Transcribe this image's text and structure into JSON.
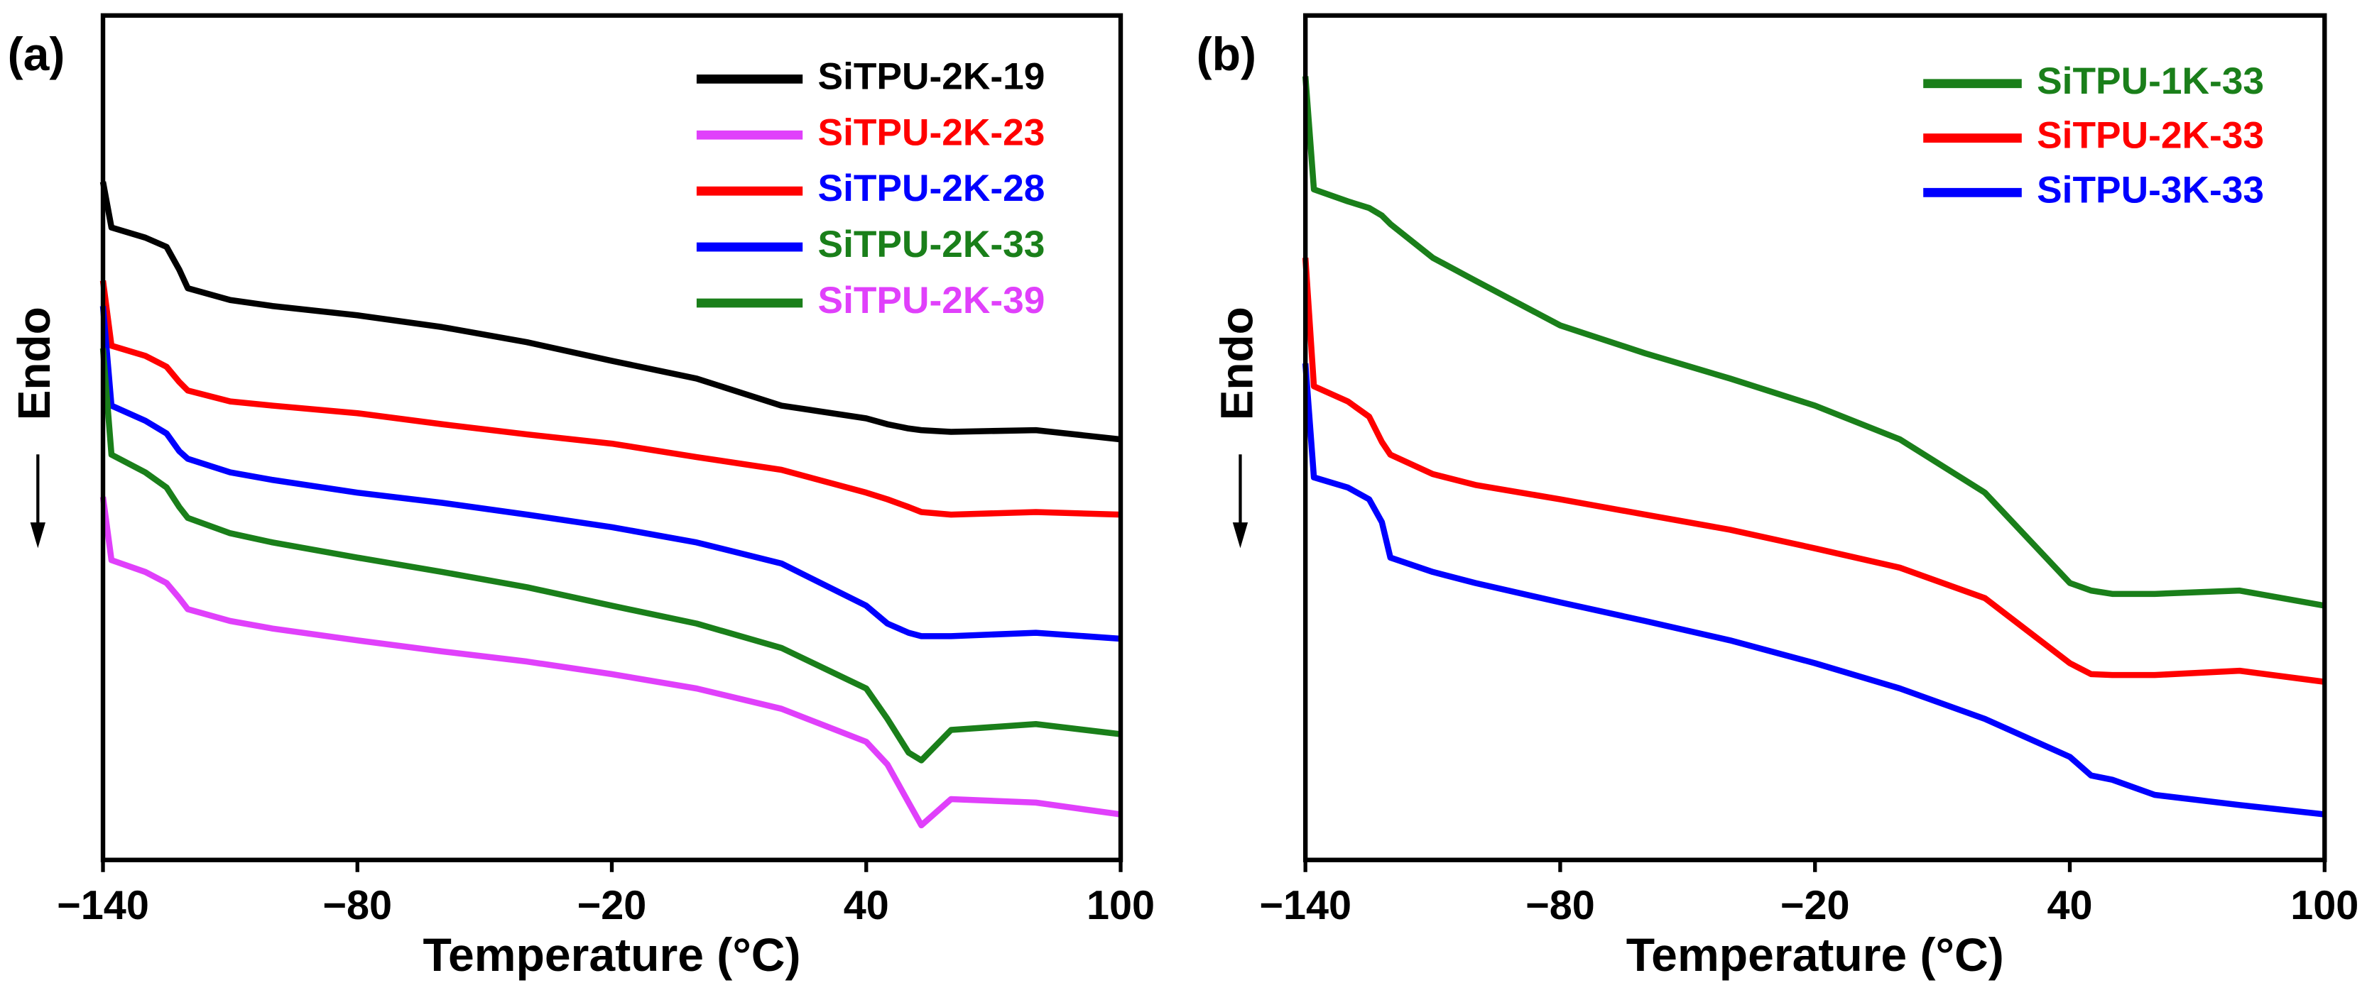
{
  "chart_data": [
    {
      "type": "line",
      "panel_label": "(a)",
      "x_label": "Temperature (°C)",
      "y_label": "Endo",
      "xlim": [
        -140,
        100
      ],
      "ylim": [
        0,
        100
      ],
      "xticks": [
        {
          "value": -140,
          "label": "−140"
        },
        {
          "value": -80,
          "label": "−80"
        },
        {
          "value": -20,
          "label": "−20"
        },
        40,
        100
      ],
      "x": [
        -140,
        -138,
        -130,
        -125,
        -122,
        -120,
        -110,
        -100,
        -80,
        -60,
        -40,
        -20,
        0,
        20,
        40,
        45,
        50,
        53,
        60,
        80,
        100
      ],
      "legend_line_colors": [
        "#000000",
        "#e040fb",
        "#ff0000",
        "#0000ff",
        "#1a7f1a"
      ],
      "series": [
        {
          "name": "SiTPU-2K-19",
          "color": "#000000",
          "values": [
            80.3,
            74.9,
            73.7,
            72.6,
            69.9,
            67.7,
            66.3,
            65.6,
            64.5,
            63.1,
            61.3,
            59.1,
            57.0,
            53.8,
            52.3,
            51.6,
            51.1,
            50.9,
            50.7,
            50.9,
            49.8
          ]
        },
        {
          "name": "SiTPU-2K-23",
          "color": "#ff0000",
          "values": [
            68.6,
            60.9,
            59.7,
            58.4,
            56.6,
            55.6,
            54.3,
            53.8,
            52.9,
            51.6,
            50.4,
            49.3,
            47.7,
            46.2,
            43.5,
            42.7,
            41.8,
            41.2,
            40.9,
            41.2,
            40.9
          ]
        },
        {
          "name": "SiTPU-2K-28",
          "color": "#0000ff",
          "values": [
            65.6,
            53.8,
            52.0,
            50.5,
            48.4,
            47.5,
            45.9,
            45.0,
            43.5,
            42.3,
            40.9,
            39.4,
            37.6,
            35.1,
            30.1,
            28.0,
            26.9,
            26.5,
            26.5,
            26.9,
            26.2
          ]
        },
        {
          "name": "SiTPU-2K-33",
          "color": "#1a7f1a",
          "values": [
            60.6,
            48.0,
            45.9,
            44.1,
            41.8,
            40.5,
            38.7,
            37.6,
            35.8,
            34.1,
            32.3,
            30.1,
            28.0,
            25.1,
            20.3,
            16.7,
            12.7,
            11.8,
            15.4,
            16.1,
            14.9
          ]
        },
        {
          "name": "SiTPU-2K-39",
          "color": "#e040fb",
          "values": [
            43.0,
            35.5,
            34.1,
            32.8,
            31.0,
            29.7,
            28.3,
            27.4,
            26.0,
            24.7,
            23.5,
            22.0,
            20.3,
            17.9,
            14.0,
            11.3,
            6.8,
            4.1,
            7.2,
            6.8,
            5.4
          ]
        }
      ]
    },
    {
      "type": "line",
      "panel_label": "(b)",
      "x_label": "Temperature (°C)",
      "y_label": "Endo",
      "xlim": [
        -140,
        100
      ],
      "ylim": [
        0,
        100
      ],
      "xticks": [
        {
          "value": -140,
          "label": "−140"
        },
        {
          "value": -80,
          "label": "−80"
        },
        {
          "value": -20,
          "label": "−20"
        },
        40,
        100
      ],
      "x": [
        -140,
        -138,
        -130,
        -125,
        -122,
        -120,
        -110,
        -100,
        -80,
        -60,
        -40,
        -20,
        0,
        20,
        40,
        45,
        50,
        60,
        80,
        100
      ],
      "series": [
        {
          "name": "SiTPU-1K-33",
          "color": "#1a7f1a",
          "values": [
            92.8,
            79.4,
            78.0,
            77.2,
            76.3,
            75.3,
            71.3,
            68.6,
            63.3,
            60.0,
            57.0,
            53.8,
            49.8,
            43.5,
            32.8,
            31.9,
            31.5,
            31.5,
            31.9,
            30.1
          ]
        },
        {
          "name": "SiTPU-2K-33",
          "color": "#ff0000",
          "values": [
            71.3,
            56.1,
            54.3,
            52.5,
            49.5,
            48.0,
            45.7,
            44.4,
            42.7,
            40.9,
            39.1,
            36.9,
            34.6,
            31.0,
            23.3,
            22.0,
            21.9,
            21.9,
            22.4,
            21.1
          ]
        },
        {
          "name": "SiTPU-3K-33",
          "color": "#0000ff",
          "values": [
            58.8,
            45.3,
            44.1,
            42.7,
            40.0,
            35.8,
            34.1,
            32.8,
            30.5,
            28.3,
            26.0,
            23.3,
            20.3,
            16.7,
            12.2,
            10.0,
            9.5,
            7.7,
            6.5,
            5.4
          ]
        }
      ]
    }
  ]
}
